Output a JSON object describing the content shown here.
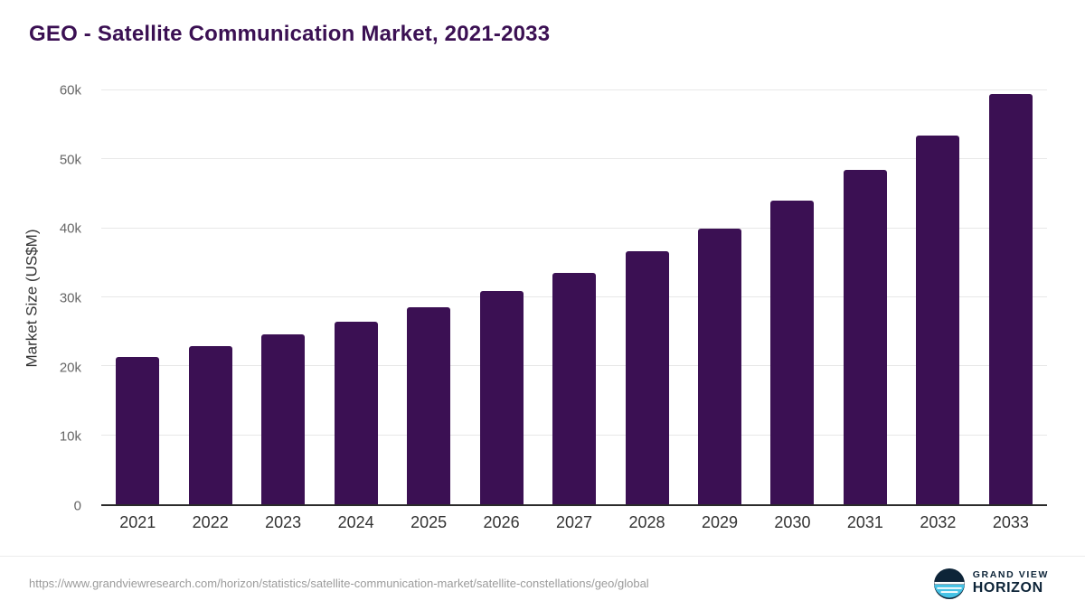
{
  "title": "GEO - Satellite Communication Market, 2021-2033",
  "chart_data": {
    "type": "bar",
    "title": "GEO - Satellite Communication Market, 2021-2033",
    "categories": [
      "2021",
      "2022",
      "2023",
      "2024",
      "2025",
      "2026",
      "2027",
      "2028",
      "2029",
      "2030",
      "2031",
      "2032",
      "2033"
    ],
    "values": [
      21400,
      22900,
      24600,
      26500,
      28500,
      30900,
      33600,
      36700,
      40000,
      44000,
      48500,
      53500,
      59500
    ],
    "xlabel": "",
    "ylabel": "Market Size (US$M)",
    "ylim": [
      0,
      60000
    ],
    "yticks": [
      {
        "value": 0,
        "label": "0"
      },
      {
        "value": 10000,
        "label": "10k"
      },
      {
        "value": 20000,
        "label": "20k"
      },
      {
        "value": 30000,
        "label": "30k"
      },
      {
        "value": 40000,
        "label": "40k"
      },
      {
        "value": 50000,
        "label": "50k"
      },
      {
        "value": 60000,
        "label": "60k"
      }
    ],
    "grid": true,
    "legend_position": "none"
  },
  "footer": {
    "source_url": "https://www.grandviewresearch.com/horizon/statistics/satellite-communication-market/satellite-constellations/geo/global",
    "logo_top": "GRAND VIEW",
    "logo_bottom": "HORIZON"
  },
  "colors": {
    "bar": "#3b1053",
    "title": "#3b1053",
    "logo_navy": "#0d2438",
    "logo_cyan": "#45c2e5"
  }
}
